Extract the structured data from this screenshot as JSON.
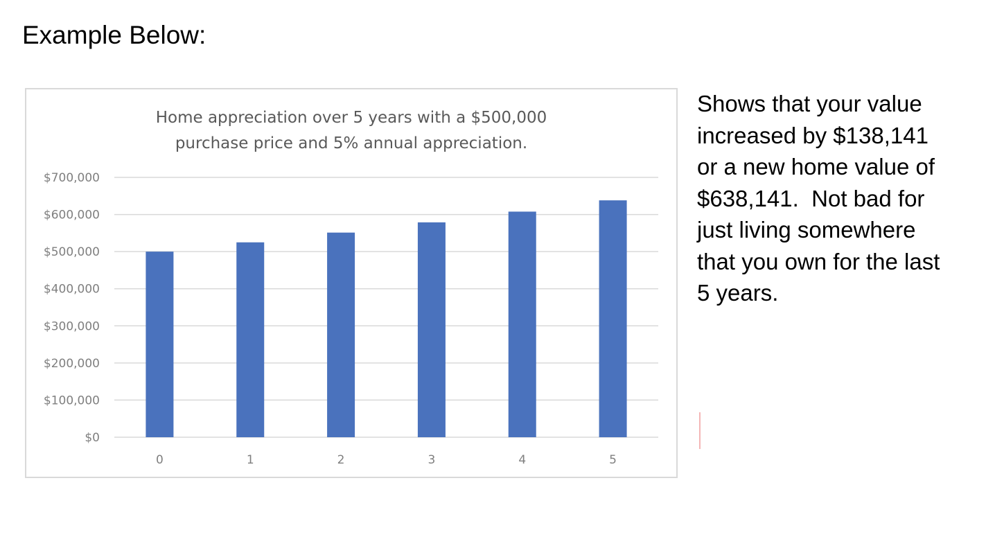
{
  "heading": "Example Below:",
  "description_lines": [
    "Shows that your value",
    "increased by $138,141",
    "or a new home value of",
    "$638,141.  Not bad for",
    "just living somewhere",
    "that you own for the last",
    "5 years."
  ],
  "colors": {
    "bar": "#4a72bd",
    "gridline": "#d9d9d9",
    "axis_text": "#7f7f7f",
    "title_text": "#595959"
  },
  "chart_data": {
    "type": "bar",
    "title_lines": [
      "Home appreciation over 5 years with a $500,000",
      "purchase price and 5% annual appreciation."
    ],
    "categories": [
      "0",
      "1",
      "2",
      "3",
      "4",
      "5"
    ],
    "values": [
      500000,
      525000,
      551250,
      578813,
      607753,
      638141
    ],
    "ylim": [
      0,
      700000
    ],
    "y_ticks": [
      0,
      100000,
      200000,
      300000,
      400000,
      500000,
      600000,
      700000
    ],
    "y_tick_labels": [
      "$0",
      "$100,000",
      "$200,000",
      "$300,000",
      "$400,000",
      "$500,000",
      "$600,000",
      "$700,000"
    ],
    "xlabel": "",
    "ylabel": "",
    "grid": true,
    "legend": "none"
  }
}
